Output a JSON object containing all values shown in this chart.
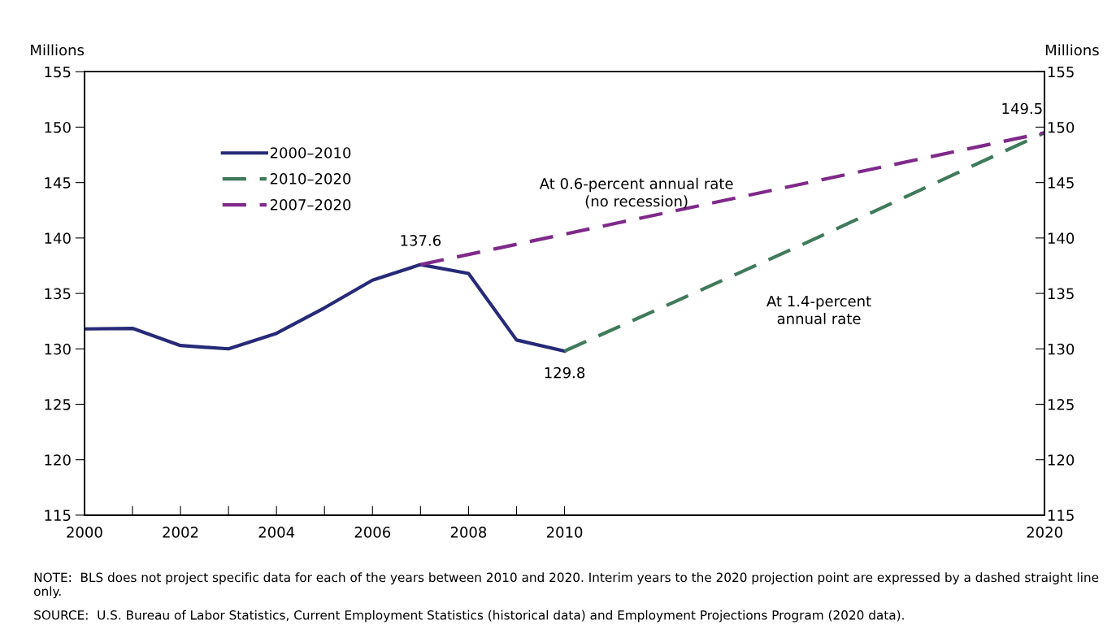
{
  "chart_data": {
    "type": "line",
    "ylabel": "Millions",
    "y2label": "Millions",
    "xlim": [
      2000,
      2020
    ],
    "xticks": [
      2000,
      {
        "value": 2001,
        "label": null
      },
      2002,
      {
        "value": 2003,
        "label": null
      },
      2004,
      {
        "value": 2005,
        "label": null
      },
      2006,
      {
        "value": 2007,
        "label": null
      },
      2008,
      {
        "value": 2009,
        "label": null
      },
      2010,
      2020
    ],
    "ylim": [
      115,
      155
    ],
    "yticks": [
      115,
      120,
      125,
      130,
      135,
      140,
      145,
      150,
      155
    ],
    "y2lim": [
      115,
      155
    ],
    "y2ticks": [
      115,
      120,
      125,
      130,
      135,
      140,
      145,
      150,
      155
    ],
    "series": [
      {
        "name": "2000–2010",
        "color": "#262a78",
        "line_style": "solid",
        "x": [
          2000,
          2001,
          2002,
          2003,
          2004,
          2005,
          2006,
          2007,
          2008,
          2009,
          2010
        ],
        "values": [
          131.8,
          131.85,
          130.3,
          130.0,
          131.4,
          133.7,
          136.2,
          137.6,
          136.8,
          130.8,
          129.8
        ]
      },
      {
        "name": "2010–2020",
        "color": "#3f7a5a",
        "line_style": "dashed",
        "x": [
          2010,
          2015,
          2020
        ],
        "values": [
          129.8,
          139.5,
          149.5
        ]
      },
      {
        "name": "2007–2020",
        "color": "#7f2a8a",
        "line_style": "dashed",
        "x": [
          2007,
          2020
        ],
        "values": [
          137.6,
          149.5
        ]
      }
    ],
    "legend": "top left",
    "grid": false,
    "annotations": [
      {
        "text": "137.6",
        "x": 2007,
        "y": 137.6
      },
      {
        "text": "129.8",
        "x": 2010,
        "y": 129.8
      },
      {
        "text": "149.5",
        "x": 2020,
        "y": 149.5
      },
      "At 0.6-percent annual rate\n(no recession)",
      "At 1.4-percent\nannual rate",
      "NOTE:  BLS does not project specific data for each of the years between 2010 and 2020. Interim years to the 2020 projection point are expressed by a dashed straight line only.",
      "SOURCE:  U.S. Bureau of Labor Statistics, Current Employment Statistics (historical data) and Employment Projections Program (2020 data)."
    ]
  }
}
